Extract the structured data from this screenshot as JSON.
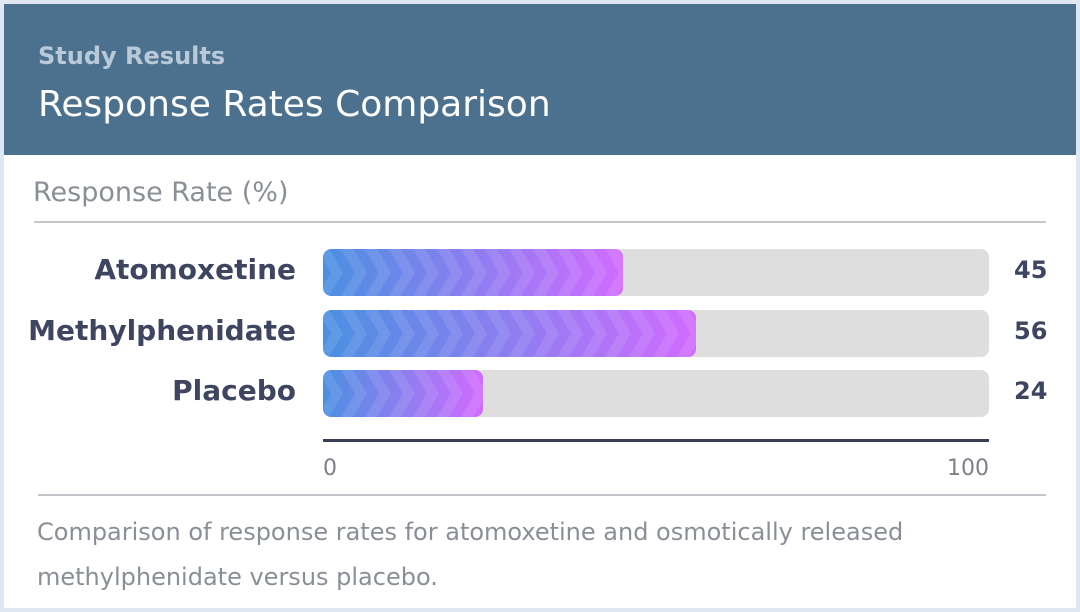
{
  "header": {
    "eyebrow": "Study Results",
    "title": "Response Rates Comparison"
  },
  "chart_data": {
    "type": "bar",
    "orientation": "horizontal",
    "xlabel": "Response Rate (%)",
    "categories": [
      "Atomoxetine",
      "Methylphenidate",
      "Placebo"
    ],
    "values": [
      45,
      56,
      24
    ],
    "xlim": [
      0,
      100
    ],
    "ticks": [
      "0",
      "100"
    ],
    "bar_gradient": [
      "#4a90e2",
      "#d16bff"
    ]
  },
  "caption": "Comparison of response rates for atomoxetine and osmotically released methylphenidate versus placebo."
}
